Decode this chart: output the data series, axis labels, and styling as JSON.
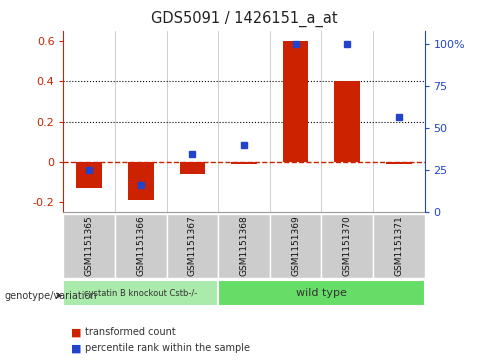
{
  "title": "GDS5091 / 1426151_a_at",
  "categories": [
    "GSM1151365",
    "GSM1151366",
    "GSM1151367",
    "GSM1151368",
    "GSM1151369",
    "GSM1151370",
    "GSM1151371"
  ],
  "red_values": [
    -0.13,
    -0.19,
    -0.06,
    -0.01,
    0.6,
    0.4,
    -0.01
  ],
  "blue_pct": [
    25,
    16,
    35,
    40,
    100,
    100,
    57
  ],
  "ylim_left": [
    -0.25,
    0.65
  ],
  "ylim_right": [
    0,
    108
  ],
  "left_yticks": [
    -0.2,
    0.0,
    0.2,
    0.4,
    0.6
  ],
  "left_yticklabels": [
    "-0.2",
    "0",
    "0.2",
    "0.4",
    "0.6"
  ],
  "right_yticks": [
    0,
    25,
    50,
    75,
    100
  ],
  "right_yticklabels": [
    "0",
    "25",
    "50",
    "75",
    "100%"
  ],
  "group1_label": "cystatin B knockout Cstb-/-",
  "group2_label": "wild type",
  "group1_count": 3,
  "group2_count": 4,
  "bar_color": "#cc2200",
  "dot_color": "#2244cc",
  "group1_bg": "#aaeaaa",
  "group2_bg": "#66dd66",
  "col_bg": "#cccccc",
  "left_axis_color": "#cc2200",
  "right_axis_color": "#2244cc",
  "dashed_line_color": "#cc2200",
  "legend_red": "transformed count",
  "legend_blue": "percentile rank within the sample",
  "genotype_label": "genotype/variation"
}
